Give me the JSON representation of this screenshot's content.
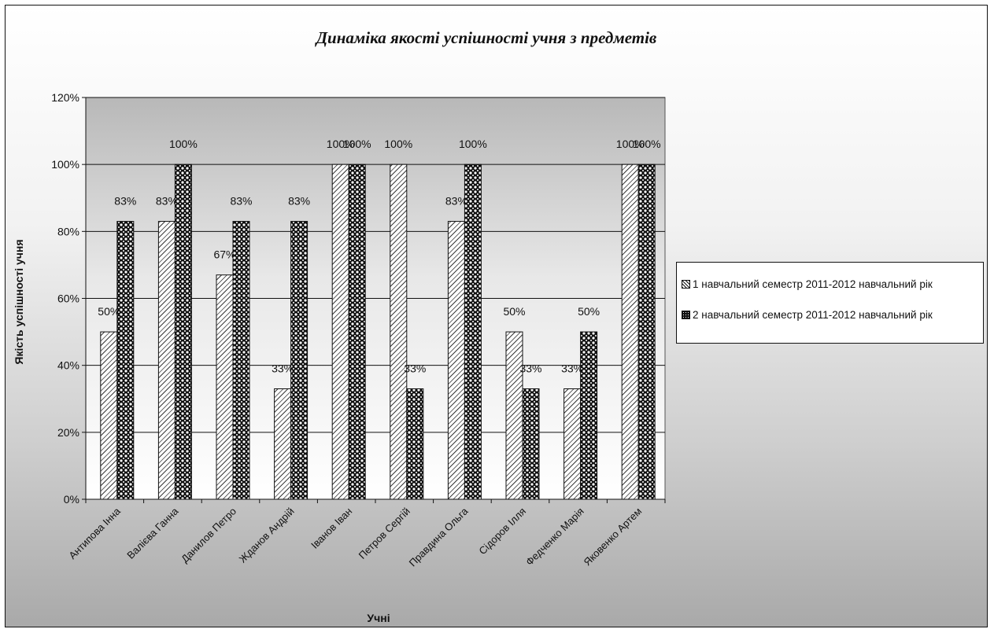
{
  "chart_data": {
    "type": "bar",
    "title": "Динаміка якості успішності учня з предметів",
    "xlabel": "Учні",
    "ylabel": "Якість успішності учня",
    "ylim": [
      0,
      1.2
    ],
    "yticks": [
      "0%",
      "20%",
      "40%",
      "60%",
      "80%",
      "100%",
      "120%"
    ],
    "grid": true,
    "legend_position": "right",
    "categories": [
      "Антипова Інна",
      "Валієва Ганна",
      "Данилов Петро",
      "Жданов Андрій",
      "Іванов Іван",
      "Петров Сергій",
      "Правдина Ольга",
      "Сідоров Ілля",
      "Федченко Марія",
      "Яковенко Артем"
    ],
    "series": [
      {
        "name": "1 навчальний семестр 2011-2012 навчальний рік",
        "values": [
          0.5,
          0.83,
          0.67,
          0.33,
          1.0,
          1.0,
          0.83,
          0.5,
          0.33,
          1.0
        ],
        "labels": [
          "50%",
          "83%",
          "67%",
          "33%",
          "100%",
          "100%",
          "83%",
          "50%",
          "33%",
          "100%"
        ],
        "pattern": "diagonal-hatch"
      },
      {
        "name": "2 навчальний семестр 2011-2012 навчальний рік",
        "values": [
          0.83,
          1.0,
          0.83,
          0.83,
          1.0,
          0.33,
          1.0,
          0.33,
          0.5,
          1.0
        ],
        "labels": [
          "83%",
          "100%",
          "83%",
          "83%",
          "100%",
          "33%",
          "100%",
          "33%",
          "50%",
          "100%"
        ],
        "pattern": "dark-checker"
      }
    ]
  }
}
